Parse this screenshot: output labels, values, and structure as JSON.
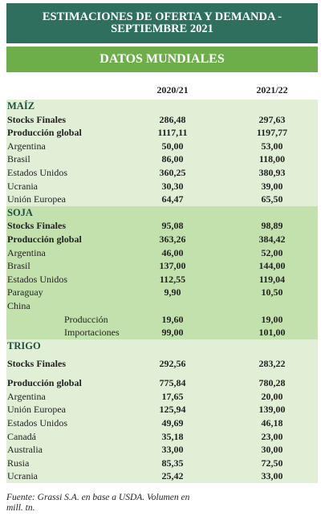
{
  "header": {
    "title_line1": "ESTIMACIONES DE OFERTA Y DEMANDA -",
    "title_line2": "SEPTIEMBRE 2021",
    "subtitle": "DATOS MUNDIALES"
  },
  "columns": [
    "2020/21",
    "2021/22"
  ],
  "maiz": {
    "name": "MAÍZ",
    "rows": [
      {
        "label": "Stocks Finales",
        "v1": "286,48",
        "v2": "297,63"
      },
      {
        "label": "Producción global",
        "v1": "1117,11",
        "v2": "1197,77"
      },
      {
        "label": "Argentina",
        "v1": "50,00",
        "v2": "53,00"
      },
      {
        "label": "Brasil",
        "v1": "86,00",
        "v2": "118,00"
      },
      {
        "label": "Estados Unidos",
        "v1": "360,25",
        "v2": "380,93"
      },
      {
        "label": "Ucrania",
        "v1": "30,30",
        "v2": "39,00"
      },
      {
        "label": "Unión Europea",
        "v1": "64,47",
        "v2": "65,50"
      }
    ]
  },
  "soja": {
    "name": "SOJA",
    "rows": [
      {
        "label": "Stocks Finales",
        "v1": "95,08",
        "v2": "98,89"
      },
      {
        "label": "Producción global",
        "v1": "363,26",
        "v2": "384,42"
      },
      {
        "label": "Argentina",
        "v1": "46,00",
        "v2": "52,00"
      },
      {
        "label": "Brasil",
        "v1": "137,00",
        "v2": "144,00"
      },
      {
        "label": "Estados Unidos",
        "v1": "112,55",
        "v2": "119,04"
      },
      {
        "label": "Paraguay",
        "v1": "9,90",
        "v2": "10,50"
      },
      {
        "label": "China",
        "v1": "",
        "v2": ""
      },
      {
        "label": "Producción",
        "v1": "19,60",
        "v2": "19,00"
      },
      {
        "label": "Importaciones",
        "v1": "99,00",
        "v2": "101,00"
      }
    ]
  },
  "trigo": {
    "name": "TRIGO",
    "rows": [
      {
        "label": "Stocks Finales",
        "v1": "292,56",
        "v2": "283,22"
      },
      {
        "label": "Producción global",
        "v1": "775,84",
        "v2": "780,28"
      },
      {
        "label": "Argentina",
        "v1": "17,65",
        "v2": "20,00"
      },
      {
        "label": "Unión Europea",
        "v1": "125,94",
        "v2": "139,00"
      },
      {
        "label": "Estados Unidos",
        "v1": "49,69",
        "v2": "46,18"
      },
      {
        "label": "Canadá",
        "v1": "35,18",
        "v2": "23,00"
      },
      {
        "label": "Australia",
        "v1": "33,00",
        "v2": "30,00"
      },
      {
        "label": "Rusia",
        "v1": "85,35",
        "v2": "72,50"
      },
      {
        "label": "Ucrania",
        "v1": "25,42",
        "v2": "33,00"
      }
    ]
  },
  "footer": "Fuente: Grassi S.A. en base a USDA. Volumen en mill. tn."
}
